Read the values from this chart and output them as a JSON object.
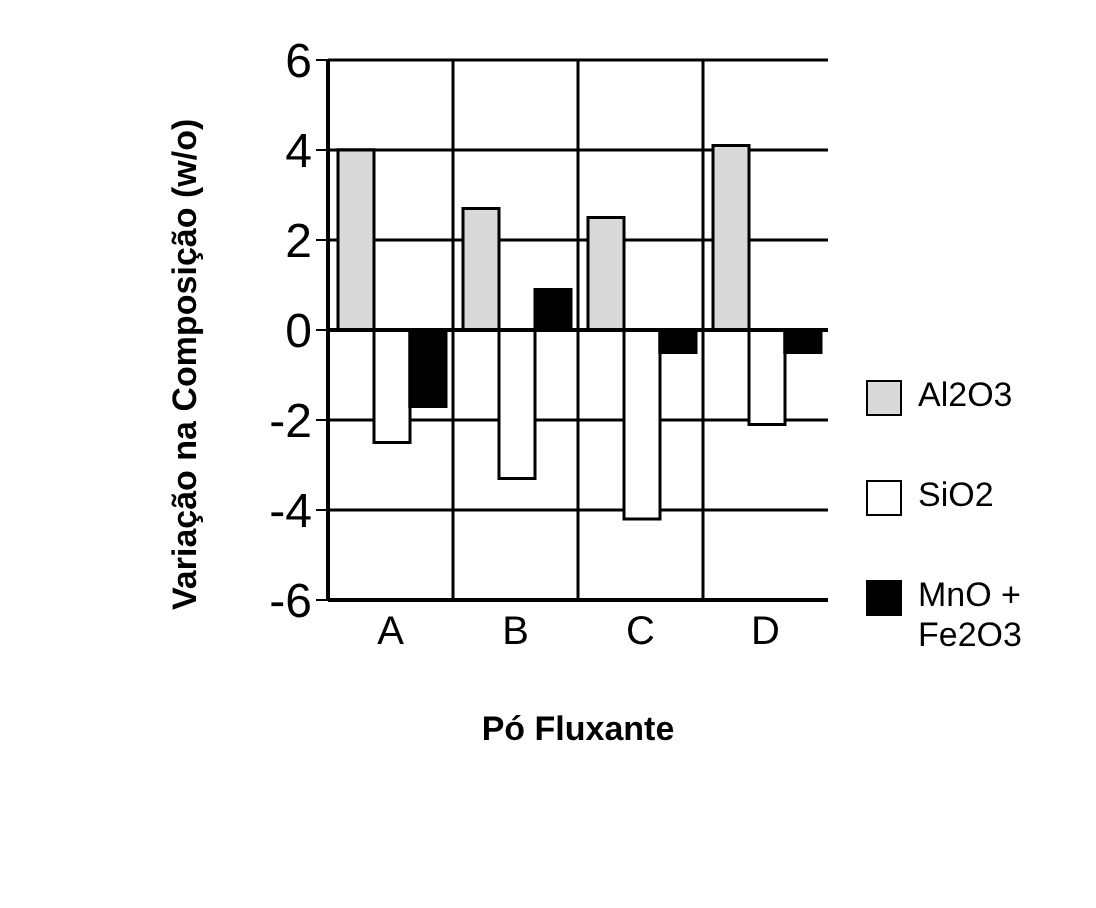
{
  "chart_data": {
    "type": "bar",
    "xlabel": "Pó Fluxante",
    "ylabel": "Variação na Composição (w/o)",
    "categories": [
      "A",
      "B",
      "C",
      "D"
    ],
    "series": [
      {
        "name": "Al2O3",
        "color": "#d9d9d9",
        "values": [
          4.0,
          2.7,
          2.5,
          4.1
        ]
      },
      {
        "name": "SiO2",
        "color": "#ffffff",
        "values": [
          -2.5,
          -3.3,
          -4.2,
          -2.1
        ]
      },
      {
        "name": "MnO + Fe2O3",
        "color": "#000000",
        "values": [
          -1.7,
          0.9,
          -0.5,
          -0.5
        ]
      }
    ],
    "ylim": [
      -6,
      6
    ],
    "yticks": [
      -6,
      -4,
      -2,
      0,
      2,
      4,
      6
    ],
    "grid": true,
    "legend": "right"
  }
}
